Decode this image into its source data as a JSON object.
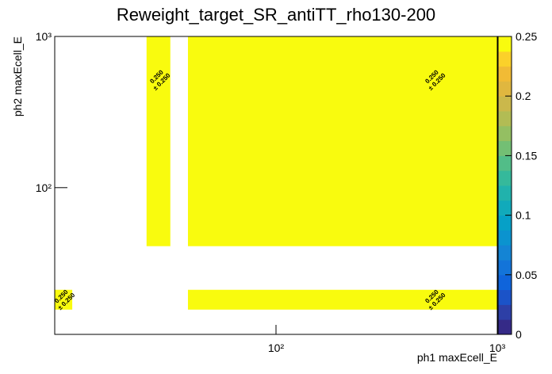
{
  "chart_data": {
    "type": "heatmap",
    "title": "Reweight_target_SR_antiTT_rho130-200",
    "xlabel": "ph1 maxEcell_E",
    "ylabel": "ph2 maxEcell_E",
    "xlog": true,
    "ylog": true,
    "xlim": [
      10,
      1000
    ],
    "ylim": [
      10.7,
      1000
    ],
    "xticks": [
      {
        "value": 100,
        "label": "10²"
      },
      {
        "value": 1000,
        "label": "10³"
      }
    ],
    "yticks": [
      {
        "value": 100,
        "label": "10²"
      },
      {
        "value": 1000,
        "label": "10³"
      }
    ],
    "cells": [
      {
        "x": [
          10,
          12
        ],
        "y": [
          15.6,
          21.1
        ],
        "value": 0.25,
        "value_label": "0.250",
        "error_label": "± 0.250"
      },
      {
        "x": [
          26,
          33.3
        ],
        "y": [
          41,
          1000
        ],
        "value": 0.25,
        "value_label": "0.250",
        "error_label": "± 0.250"
      },
      {
        "x": [
          40,
          1000
        ],
        "y": [
          41,
          1000
        ],
        "value": 0.25,
        "value_label": "0.250",
        "error_label": "± 0.250"
      },
      {
        "x": [
          40,
          1000
        ],
        "y": [
          15.6,
          21.1
        ],
        "value": 0.25,
        "value_label": "0.250",
        "error_label": "± 0.250"
      }
    ],
    "zlim": [
      0,
      0.25
    ],
    "zticks": [
      0,
      0.05,
      0.1,
      0.15,
      0.2,
      0.25
    ],
    "palette": [
      "#352a87",
      "#2d3fa6",
      "#1b53c8",
      "#0f64db",
      "#1374d9",
      "#1484d4",
      "#0b93cf",
      "#06a0c7",
      "#11aabb",
      "#21b2ac",
      "#35b99b",
      "#52bd88",
      "#73bf74",
      "#94bf62",
      "#b2bc54",
      "#cbb84b",
      "#e0b73f",
      "#f1bb35",
      "#fbd12a",
      "#f9fb0e"
    ]
  }
}
